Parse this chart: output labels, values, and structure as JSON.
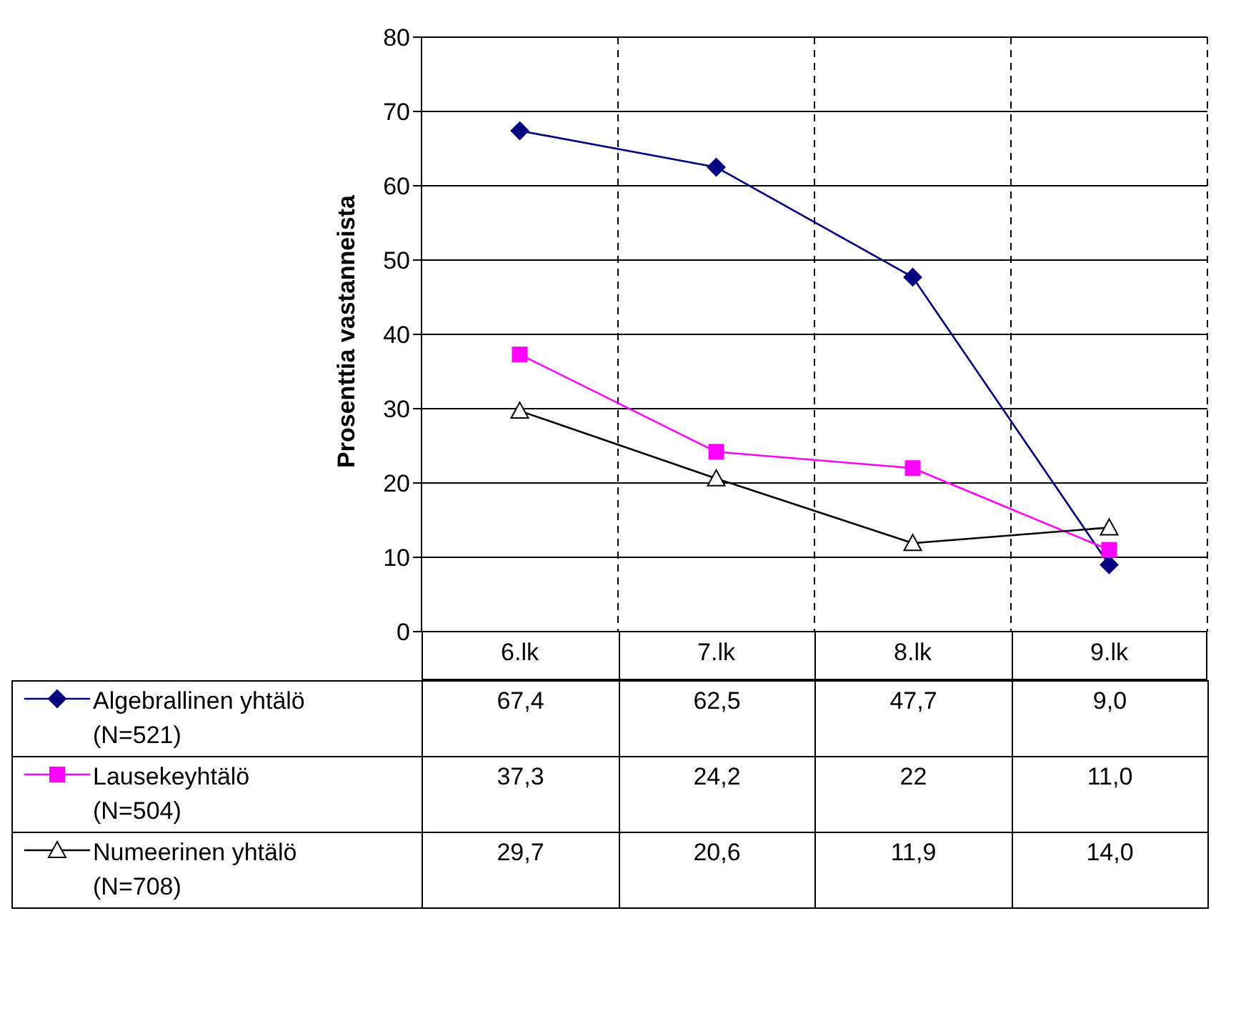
{
  "chart_data": {
    "type": "line",
    "ylabel": "Prosenttia vastanneista",
    "categories": [
      "6.lk",
      "7.lk",
      "8.lk",
      "9.lk"
    ],
    "series": [
      {
        "name": "Algebrallinen yhtälö (N=521)",
        "color": "#000080",
        "marker": "diamond",
        "values": [
          67.4,
          62.5,
          47.7,
          9.0
        ],
        "value_labels": [
          "67,4",
          "62,5",
          "47,7",
          "9,0"
        ]
      },
      {
        "name": "Lausekeyhtälö (N=504)",
        "color": "#ff00ff",
        "marker": "square",
        "values": [
          37.3,
          24.2,
          22,
          11.0
        ],
        "value_labels": [
          "37,3",
          "24,2",
          "22",
          "11,0"
        ]
      },
      {
        "name": "Numeerinen yhtälö (N=708)",
        "color": "#000000",
        "marker": "triangle",
        "values": [
          29.7,
          20.6,
          11.9,
          14.0
        ],
        "value_labels": [
          "29,7",
          "20,6",
          "11,9",
          "14,0"
        ]
      }
    ],
    "ylim": [
      0,
      80
    ],
    "yticks": [
      0,
      10,
      20,
      30,
      40,
      50,
      60,
      70,
      80
    ],
    "grid": true,
    "legend": "bottom"
  }
}
